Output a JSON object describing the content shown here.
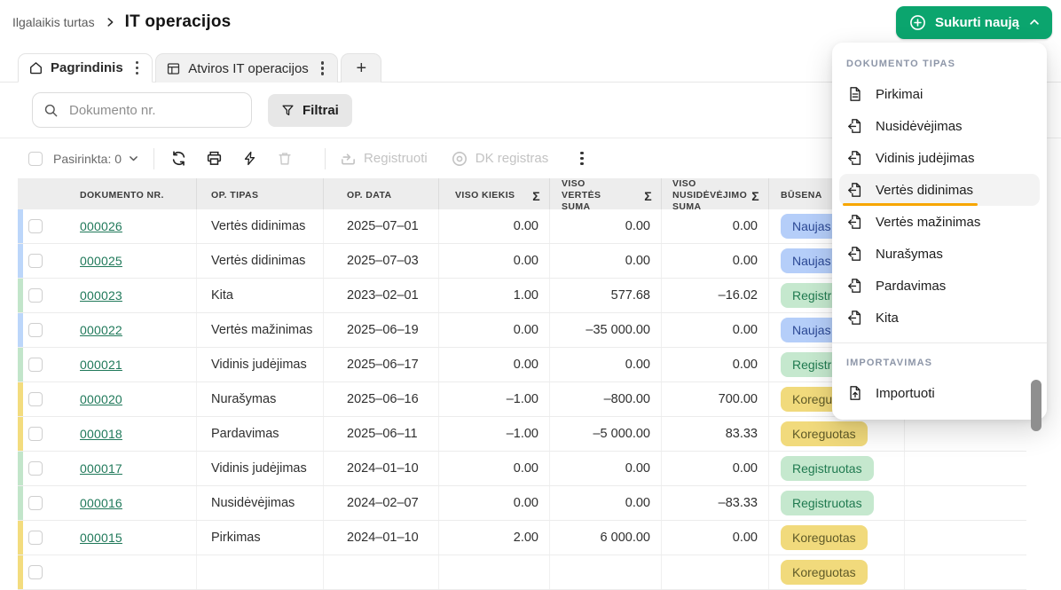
{
  "breadcrumb": {
    "parent": "Ilgalaikis turtas",
    "current": "IT operacijos",
    "separator_icon": "chevron-right-icon"
  },
  "create_button": {
    "label": "Sukurti naują",
    "left_icon": "plus-circle-icon",
    "right_icon": "chevron-up-icon"
  },
  "tabs": {
    "items": [
      {
        "label": "Pagrindinis",
        "icon": "home-icon",
        "menu_icon": "kebab-icon",
        "active": true
      },
      {
        "label": "Atviros IT operacijos",
        "icon": "grid-icon",
        "menu_icon": "kebab-icon",
        "active": false
      }
    ],
    "add_label": "+"
  },
  "search": {
    "placeholder": "Dokumento nr.",
    "icon": "search-icon"
  },
  "filters": {
    "label": "Filtrai",
    "icon": "funnel-icon"
  },
  "toolbar": {
    "selected_label": "Pasirinkta: 0",
    "selected_chevron_icon": "chevron-down-icon",
    "action_icons": [
      "refresh-icon",
      "print-icon",
      "lightning-icon",
      "trash-icon"
    ],
    "register_label": "Registruoti",
    "register_icon": "register-icon",
    "dk_register_label": "DK registras",
    "dk_register_icon": "eye-icon",
    "more_icon": "kebab-icon"
  },
  "table": {
    "headers": {
      "doc": "DOKUMENTO NR.",
      "type": "OP. TIPAS",
      "date": "OP. DATA",
      "qty": "VISO KIEKIS",
      "value": "VISO VERTĖS SUMA",
      "depr": "VISO NUSIDĖVĖJIMO SUMA",
      "status": "BŪSENA",
      "sum_symbol": "Σ"
    },
    "rows": [
      {
        "nr": "000026",
        "type": "Vertės didinimas",
        "date": "2025–07–01",
        "qty": "0.00",
        "value": "0.00",
        "depr": "0.00",
        "status": "Naujas",
        "color": "blue"
      },
      {
        "nr": "000025",
        "type": "Vertės didinimas",
        "date": "2025–07–03",
        "qty": "0.00",
        "value": "0.00",
        "depr": "0.00",
        "status": "Naujas",
        "color": "blue"
      },
      {
        "nr": "000023",
        "type": "Kita",
        "date": "2023–02–01",
        "qty": "1.00",
        "value": "577.68",
        "depr": "–16.02",
        "status": "Registruotas",
        "color": "green"
      },
      {
        "nr": "000022",
        "type": "Vertės mažinimas",
        "date": "2025–06–19",
        "qty": "0.00",
        "value": "–35 000.00",
        "depr": "0.00",
        "status": "Naujas",
        "color": "blue"
      },
      {
        "nr": "000021",
        "type": "Vidinis judėjimas",
        "date": "2025–06–17",
        "qty": "0.00",
        "value": "0.00",
        "depr": "0.00",
        "status": "Registruotas",
        "color": "green"
      },
      {
        "nr": "000020",
        "type": "Nurašymas",
        "date": "2025–06–16",
        "qty": "–1.00",
        "value": "–800.00",
        "depr": "700.00",
        "status": "Koreguotas",
        "color": "yellow"
      },
      {
        "nr": "000018",
        "type": "Pardavimas",
        "date": "2025–06–11",
        "qty": "–1.00",
        "value": "–5 000.00",
        "depr": "83.33",
        "status": "Koreguotas",
        "color": "yellow"
      },
      {
        "nr": "000017",
        "type": "Vidinis judėjimas",
        "date": "2024–01–10",
        "qty": "0.00",
        "value": "0.00",
        "depr": "0.00",
        "status": "Registruotas",
        "color": "green"
      },
      {
        "nr": "000016",
        "type": "Nusidėvėjimas",
        "date": "2024–02–07",
        "qty": "0.00",
        "value": "0.00",
        "depr": "–83.33",
        "status": "Registruotas",
        "color": "green"
      },
      {
        "nr": "000015",
        "type": "Pirkimas",
        "date": "2024–01–10",
        "qty": "2.00",
        "value": "6 000.00",
        "depr": "0.00",
        "status": "Koreguotas",
        "color": "yellow"
      },
      {
        "nr": "",
        "type": "",
        "date": "",
        "qty": "",
        "value": "",
        "depr": "",
        "status": "Koreguotas",
        "color": "yellow"
      }
    ]
  },
  "dropdown": {
    "sections": [
      {
        "title": "DOKUMENTO TIPAS",
        "items": [
          {
            "label": "Pirkimai",
            "icon": "document-icon",
            "active": false
          },
          {
            "label": "Nusidėvėjimas",
            "icon": "file-arrow-left-icon",
            "active": false
          },
          {
            "label": "Vidinis judėjimas",
            "icon": "file-arrow-left-icon",
            "active": false
          },
          {
            "label": "Vertės didinimas",
            "icon": "file-arrow-left-icon",
            "active": true
          },
          {
            "label": "Vertės mažinimas",
            "icon": "file-arrow-left-icon",
            "active": false
          },
          {
            "label": "Nurašymas",
            "icon": "file-arrow-left-icon",
            "active": false
          },
          {
            "label": "Pardavimas",
            "icon": "file-arrow-left-icon",
            "active": false
          },
          {
            "label": "Kita",
            "icon": "file-arrow-left-icon",
            "active": false
          }
        ]
      },
      {
        "title": "IMPORTAVIMAS",
        "items": [
          {
            "label": "Importuoti",
            "icon": "file-arrow-up-icon",
            "active": false
          }
        ]
      }
    ]
  },
  "colors": {
    "accent_green": "#0ba56e",
    "link_green": "#20795a",
    "highlight_orange": "#f7a600",
    "status_blue_bg": "#b5cef9",
    "status_blue_text": "#2b4894",
    "status_green_bg": "#c5e8ce",
    "status_green_text": "#207a50",
    "status_yellow_bg": "#f1da7c",
    "status_yellow_text": "#5f5a28"
  }
}
